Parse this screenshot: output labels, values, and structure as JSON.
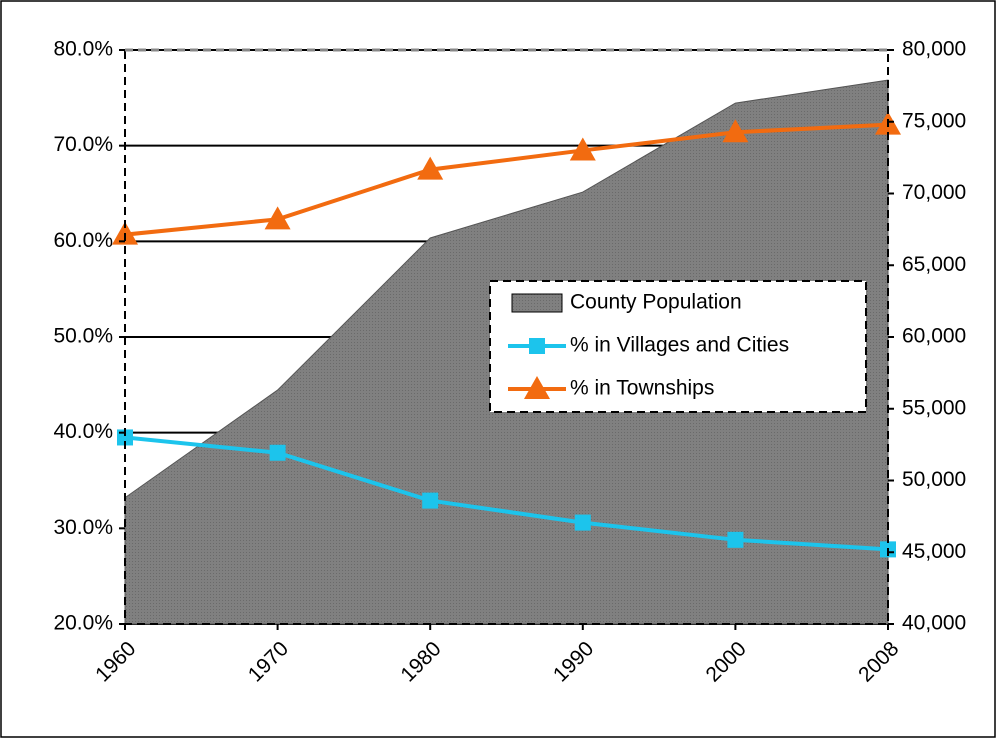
{
  "chart_data": {
    "type": "line",
    "categories": [
      "1960",
      "1970",
      "1980",
      "1990",
      "2000",
      "2008"
    ],
    "series": [
      {
        "name": "County Population",
        "type": "area",
        "axis": "y2",
        "color": "#808080",
        "values": [
          48800,
          56300,
          66900,
          70100,
          76300,
          77900
        ]
      },
      {
        "name": "% in Villages and Cities",
        "color": "#1cc4ec",
        "marker": "square",
        "values": [
          39.5,
          37.9,
          32.9,
          30.6,
          28.8,
          27.8
        ]
      },
      {
        "name": "% in Townships",
        "color": "#f26b10",
        "marker": "triangle",
        "values": [
          60.7,
          62.3,
          67.5,
          69.5,
          71.4,
          72.2
        ]
      }
    ],
    "ylim": [
      20,
      80
    ],
    "yticks": [
      {
        "value": 20,
        "label": "20.0%"
      },
      {
        "value": 30,
        "label": "30.0%"
      },
      {
        "value": 40,
        "label": "40.0%"
      },
      {
        "value": 50,
        "label": "50.0%"
      },
      {
        "value": 60,
        "label": "60.0%"
      },
      {
        "value": 70,
        "label": "70.0%"
      },
      {
        "value": 80,
        "label": "80.0%"
      }
    ],
    "y2lim": [
      40000,
      80000
    ],
    "y2ticks": [
      {
        "value": 40000,
        "label": "40,000"
      },
      {
        "value": 45000,
        "label": "45,000"
      },
      {
        "value": 50000,
        "label": "50,000"
      },
      {
        "value": 55000,
        "label": "55,000"
      },
      {
        "value": 60000,
        "label": "60,000"
      },
      {
        "value": 65000,
        "label": "65,000"
      },
      {
        "value": 70000,
        "label": "70,000"
      },
      {
        "value": 75000,
        "label": "75,000"
      },
      {
        "value": 80000,
        "label": "80,000"
      }
    ],
    "grid": true,
    "legend": "right"
  }
}
